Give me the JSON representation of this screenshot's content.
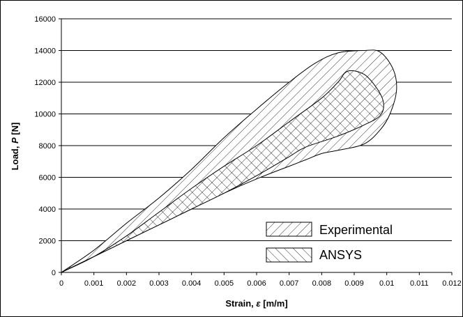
{
  "chart_data": {
    "type": "area",
    "title": "",
    "xlabel": {
      "prefix": "Strain, ",
      "symbol": "ε",
      "suffix": " [m/m]"
    },
    "ylabel": {
      "prefix": "Load, ",
      "symbol": "P",
      "suffix": " [N]"
    },
    "xlim": [
      0,
      0.012
    ],
    "ylim": [
      0,
      16000
    ],
    "xticks": [
      "0",
      "0.001",
      "0.002",
      "0.003",
      "0.004",
      "0.005",
      "0.006",
      "0.007",
      "0.008",
      "0.009",
      "0.01",
      "0.011",
      "0.012"
    ],
    "yticks": [
      "0",
      "2000",
      "4000",
      "6000",
      "8000",
      "10000",
      "12000",
      "14000",
      "16000"
    ],
    "grid": "horizontal",
    "legend_position": "bottom-right",
    "series": [
      {
        "name": "Experimental",
        "pattern": "diagonal-hatch",
        "boundary": [
          [
            0,
            0
          ],
          [
            0.001,
            1400
          ],
          [
            0.002,
            3100
          ],
          [
            0.003,
            4700
          ],
          [
            0.004,
            6500
          ],
          [
            0.005,
            8500
          ],
          [
            0.006,
            10300
          ],
          [
            0.007,
            12000
          ],
          [
            0.0078,
            13200
          ],
          [
            0.0085,
            13850
          ],
          [
            0.0093,
            14000
          ],
          [
            0.0098,
            13900
          ],
          [
            0.0102,
            12800
          ],
          [
            0.0103,
            11500
          ],
          [
            0.0101,
            10000
          ],
          [
            0.0098,
            9000
          ],
          [
            0.0093,
            8100
          ],
          [
            0.0085,
            7700
          ],
          [
            0.008,
            7500
          ],
          [
            0.0075,
            7100
          ],
          [
            0.007,
            6700
          ],
          [
            0.006,
            5900
          ],
          [
            0.005,
            5000
          ],
          [
            0.004,
            4000
          ],
          [
            0.003,
            3000
          ],
          [
            0.002,
            2000
          ],
          [
            0.001,
            1000
          ],
          [
            0,
            0
          ]
        ]
      },
      {
        "name": "ANSYS",
        "pattern": "cross-hatch",
        "boundary": [
          [
            0,
            0
          ],
          [
            0.001,
            1000
          ],
          [
            0.002,
            2300
          ],
          [
            0.003,
            3800
          ],
          [
            0.004,
            5300
          ],
          [
            0.005,
            6700
          ],
          [
            0.006,
            8000
          ],
          [
            0.007,
            9500
          ],
          [
            0.008,
            11000
          ],
          [
            0.0085,
            12000
          ],
          [
            0.0088,
            12700
          ],
          [
            0.0093,
            12500
          ],
          [
            0.0097,
            11600
          ],
          [
            0.0099,
            10700
          ],
          [
            0.0098,
            9900
          ],
          [
            0.0093,
            9300
          ],
          [
            0.0085,
            8600
          ],
          [
            0.0075,
            7900
          ],
          [
            0.007,
            7300
          ],
          [
            0.006,
            6100
          ],
          [
            0.005,
            5000
          ],
          [
            0.004,
            4000
          ],
          [
            0.003,
            3000
          ],
          [
            0.002,
            2000
          ],
          [
            0.001,
            1000
          ],
          [
            0,
            0
          ]
        ]
      }
    ]
  }
}
